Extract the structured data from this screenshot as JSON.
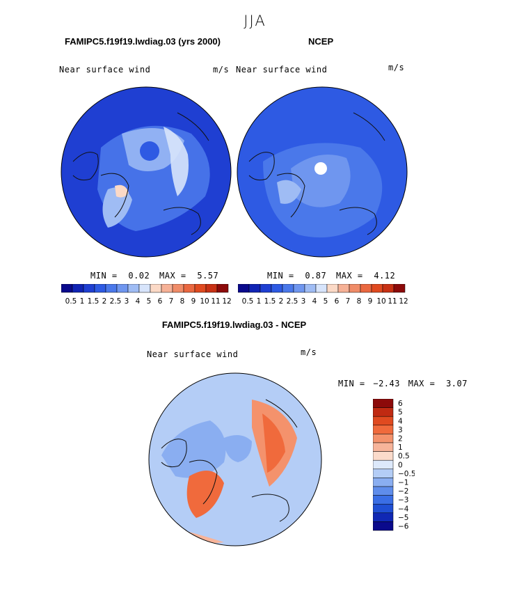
{
  "page_title": "JJA",
  "panels": {
    "model": {
      "title": "FAMIPC5.f19f19.lwdiag.03 (yrs 2000)",
      "label": "Near surface wind",
      "units": "m/s",
      "min_label": "MIN =",
      "min": "0.02",
      "max_label": "MAX =",
      "max": "5.57"
    },
    "obs": {
      "title": "NCEP",
      "label": "Near surface wind",
      "units": "m/s",
      "min_label": "MIN =",
      "min": "0.87",
      "max_label": "MAX =",
      "max": "4.12"
    },
    "diff": {
      "title": "FAMIPC5.f19f19.lwdiag.03 - NCEP",
      "label": "Near surface wind",
      "units": "m/s",
      "min_label": "MIN =",
      "min": "−2.43",
      "max_label": "MAX =",
      "max": "3.07"
    }
  },
  "chart_data": [
    {
      "type": "heatmap",
      "title": "FAMIPC5.f19f19.lwdiag.03 (yrs 2000)",
      "variable": "Near surface wind",
      "units": "m/s",
      "projection": "north polar stereographic",
      "min": 0.02,
      "max": 5.57,
      "colorbar_levels": [
        0.5,
        1,
        1.5,
        2,
        2.5,
        3,
        4,
        5,
        6,
        7,
        8,
        9,
        10,
        11,
        12
      ],
      "colorbar_tick_labels": [
        "0.5",
        "1",
        "1.5",
        "2",
        "2.5",
        "3",
        "4",
        "5",
        "6",
        "7",
        "8",
        "9",
        "10",
        "11",
        "12"
      ]
    },
    {
      "type": "heatmap",
      "title": "NCEP",
      "variable": "Near surface wind",
      "units": "m/s",
      "projection": "north polar stereographic",
      "min": 0.87,
      "max": 4.12,
      "colorbar_levels": [
        0.5,
        1,
        1.5,
        2,
        2.5,
        3,
        4,
        5,
        6,
        7,
        8,
        9,
        10,
        11,
        12
      ],
      "colorbar_tick_labels": [
        "0.5",
        "1",
        "1.5",
        "2",
        "2.5",
        "3",
        "4",
        "5",
        "6",
        "7",
        "8",
        "9",
        "10",
        "11",
        "12"
      ]
    },
    {
      "type": "heatmap",
      "title": "FAMIPC5.f19f19.lwdiag.03 - NCEP",
      "variable": "Near surface wind",
      "units": "m/s",
      "projection": "north polar stereographic",
      "min": -2.43,
      "max": 3.07,
      "colorbar_levels": [
        6,
        5,
        4,
        3,
        2,
        1,
        0.5,
        0,
        -0.5,
        -1,
        -2,
        -3,
        -4,
        -5,
        -6
      ],
      "colorbar_tick_labels": [
        "6",
        "5",
        "4",
        "3",
        "2",
        "1",
        "0.5",
        "0",
        "−0.5",
        "−1",
        "−2",
        "−3",
        "−4",
        "−5",
        "−6"
      ]
    }
  ],
  "colors": {
    "abs_scale": [
      "#0a0a8c",
      "#1024b4",
      "#1f3fd2",
      "#2e5ae3",
      "#4a78ea",
      "#6f96ef",
      "#9fbcf4",
      "#d7e4fb",
      "#fbd9c6",
      "#f6b196",
      "#f08c68",
      "#ea6840",
      "#e04a20",
      "#c83114",
      "#8c0a0a"
    ],
    "diff_scale": [
      "#8c0a0a",
      "#c02a12",
      "#e04a20",
      "#f06a3c",
      "#f4926c",
      "#f7b49a",
      "#fbdbcb",
      "#dde9fb",
      "#b4cdf6",
      "#8aaef1",
      "#5f8deb",
      "#3a6ee5",
      "#1f4fd4",
      "#1028b4",
      "#0a0a8c"
    ],
    "coast": "#111111"
  }
}
